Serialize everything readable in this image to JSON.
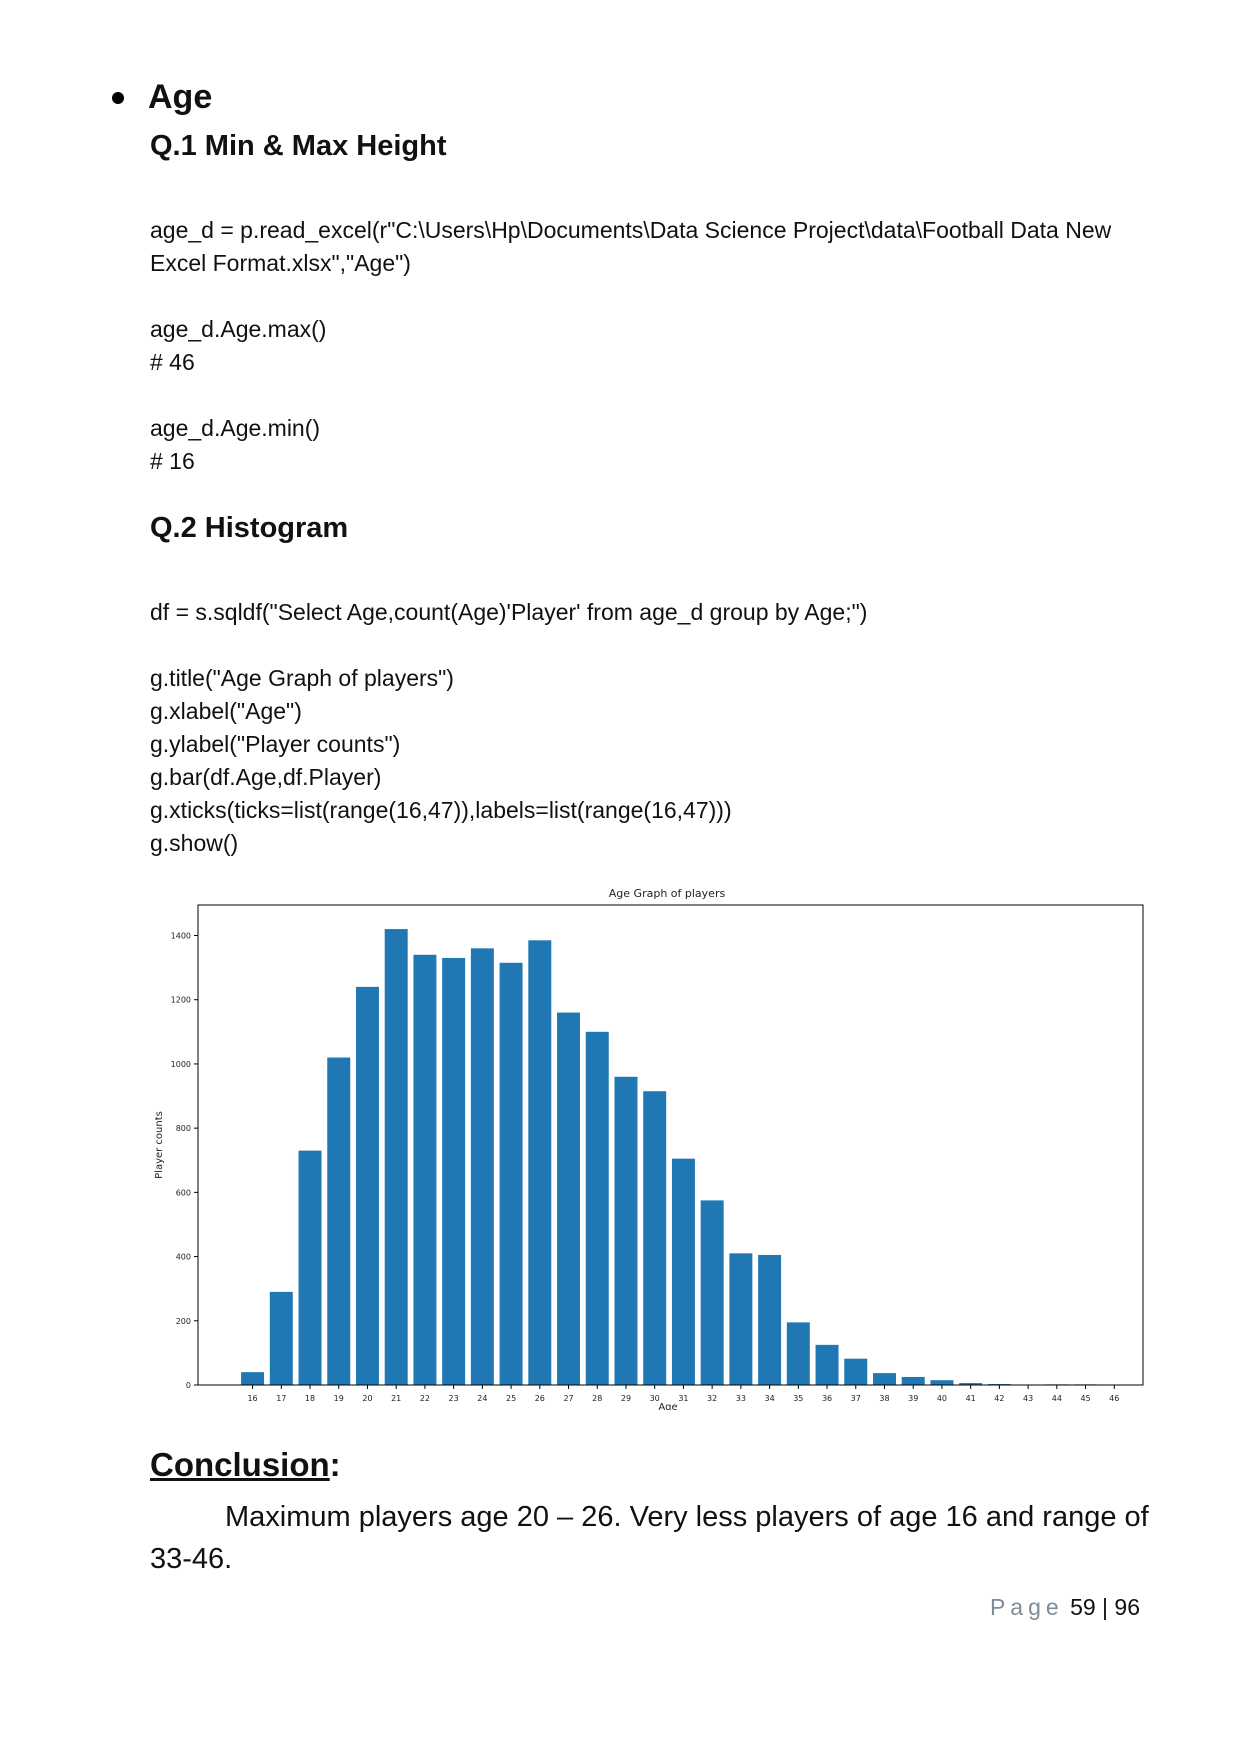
{
  "section": {
    "title": "Age"
  },
  "q1": {
    "heading": "Q.1 Min & Max Height",
    "code_line1": "age_d = p.read_excel(r\"C:\\Users\\Hp\\Documents\\Data Science Project\\data\\Football Data New Excel Format.xlsx\",\"Age\")",
    "code_max": "age_d.Age.max()",
    "result_max": "# 46",
    "code_min": "age_d.Age.min()",
    "result_min": "# 16"
  },
  "q2": {
    "heading": "Q.2 Histogram",
    "code": [
      "df = s.sqldf(\"Select Age,count(Age)'Player' from age_d group by Age;\")",
      "",
      "g.title(\"Age Graph of players\")",
      "g.xlabel(\"Age\")",
      "g.ylabel(\"Player counts\")",
      "g.bar(df.Age,df.Player)",
      "g.xticks(ticks=list(range(16,47)),labels=list(range(16,47)))",
      "g.show()"
    ]
  },
  "chart_data": {
    "type": "bar",
    "title": "Age Graph of players",
    "xlabel": "Age",
    "ylabel": "Player counts",
    "categories": [
      16,
      17,
      18,
      19,
      20,
      21,
      22,
      23,
      24,
      25,
      26,
      27,
      28,
      29,
      30,
      31,
      32,
      33,
      34,
      35,
      36,
      37,
      38,
      39,
      40,
      41,
      42,
      43,
      44,
      45,
      46
    ],
    "values": [
      40,
      290,
      730,
      1020,
      1240,
      1420,
      1340,
      1330,
      1360,
      1315,
      1385,
      1160,
      1100,
      960,
      915,
      705,
      575,
      410,
      405,
      195,
      125,
      82,
      37,
      25,
      15,
      6,
      3,
      1,
      2,
      2,
      1
    ],
    "yticks": [
      0,
      200,
      400,
      600,
      800,
      1000,
      1200,
      1400
    ],
    "ylim": [
      0,
      1495
    ],
    "xlim": [
      14.1,
      47.0
    ],
    "bar_color": "#1f77b4",
    "grid": false
  },
  "conclusion": {
    "title": "Conclusion",
    "colon": ":",
    "text": "Maximum players age 20 – 26. Very less players of age 16 and range of 33-46."
  },
  "footer": {
    "page_label": "Page",
    "page_num": "59 | 96"
  }
}
